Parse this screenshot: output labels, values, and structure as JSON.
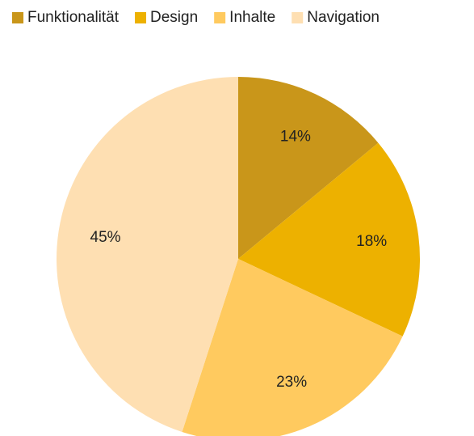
{
  "chart_data": {
    "type": "pie",
    "categories": [
      "Funktionalität",
      "Design",
      "Inhalte",
      "Navigation"
    ],
    "values": [
      14,
      18,
      23,
      45
    ],
    "value_labels": [
      "14%",
      "18%",
      "23%",
      "45%"
    ],
    "colors": [
      "#c9961a",
      "#edb100",
      "#ffca5f",
      "#fedfb2"
    ],
    "legend": "top"
  }
}
